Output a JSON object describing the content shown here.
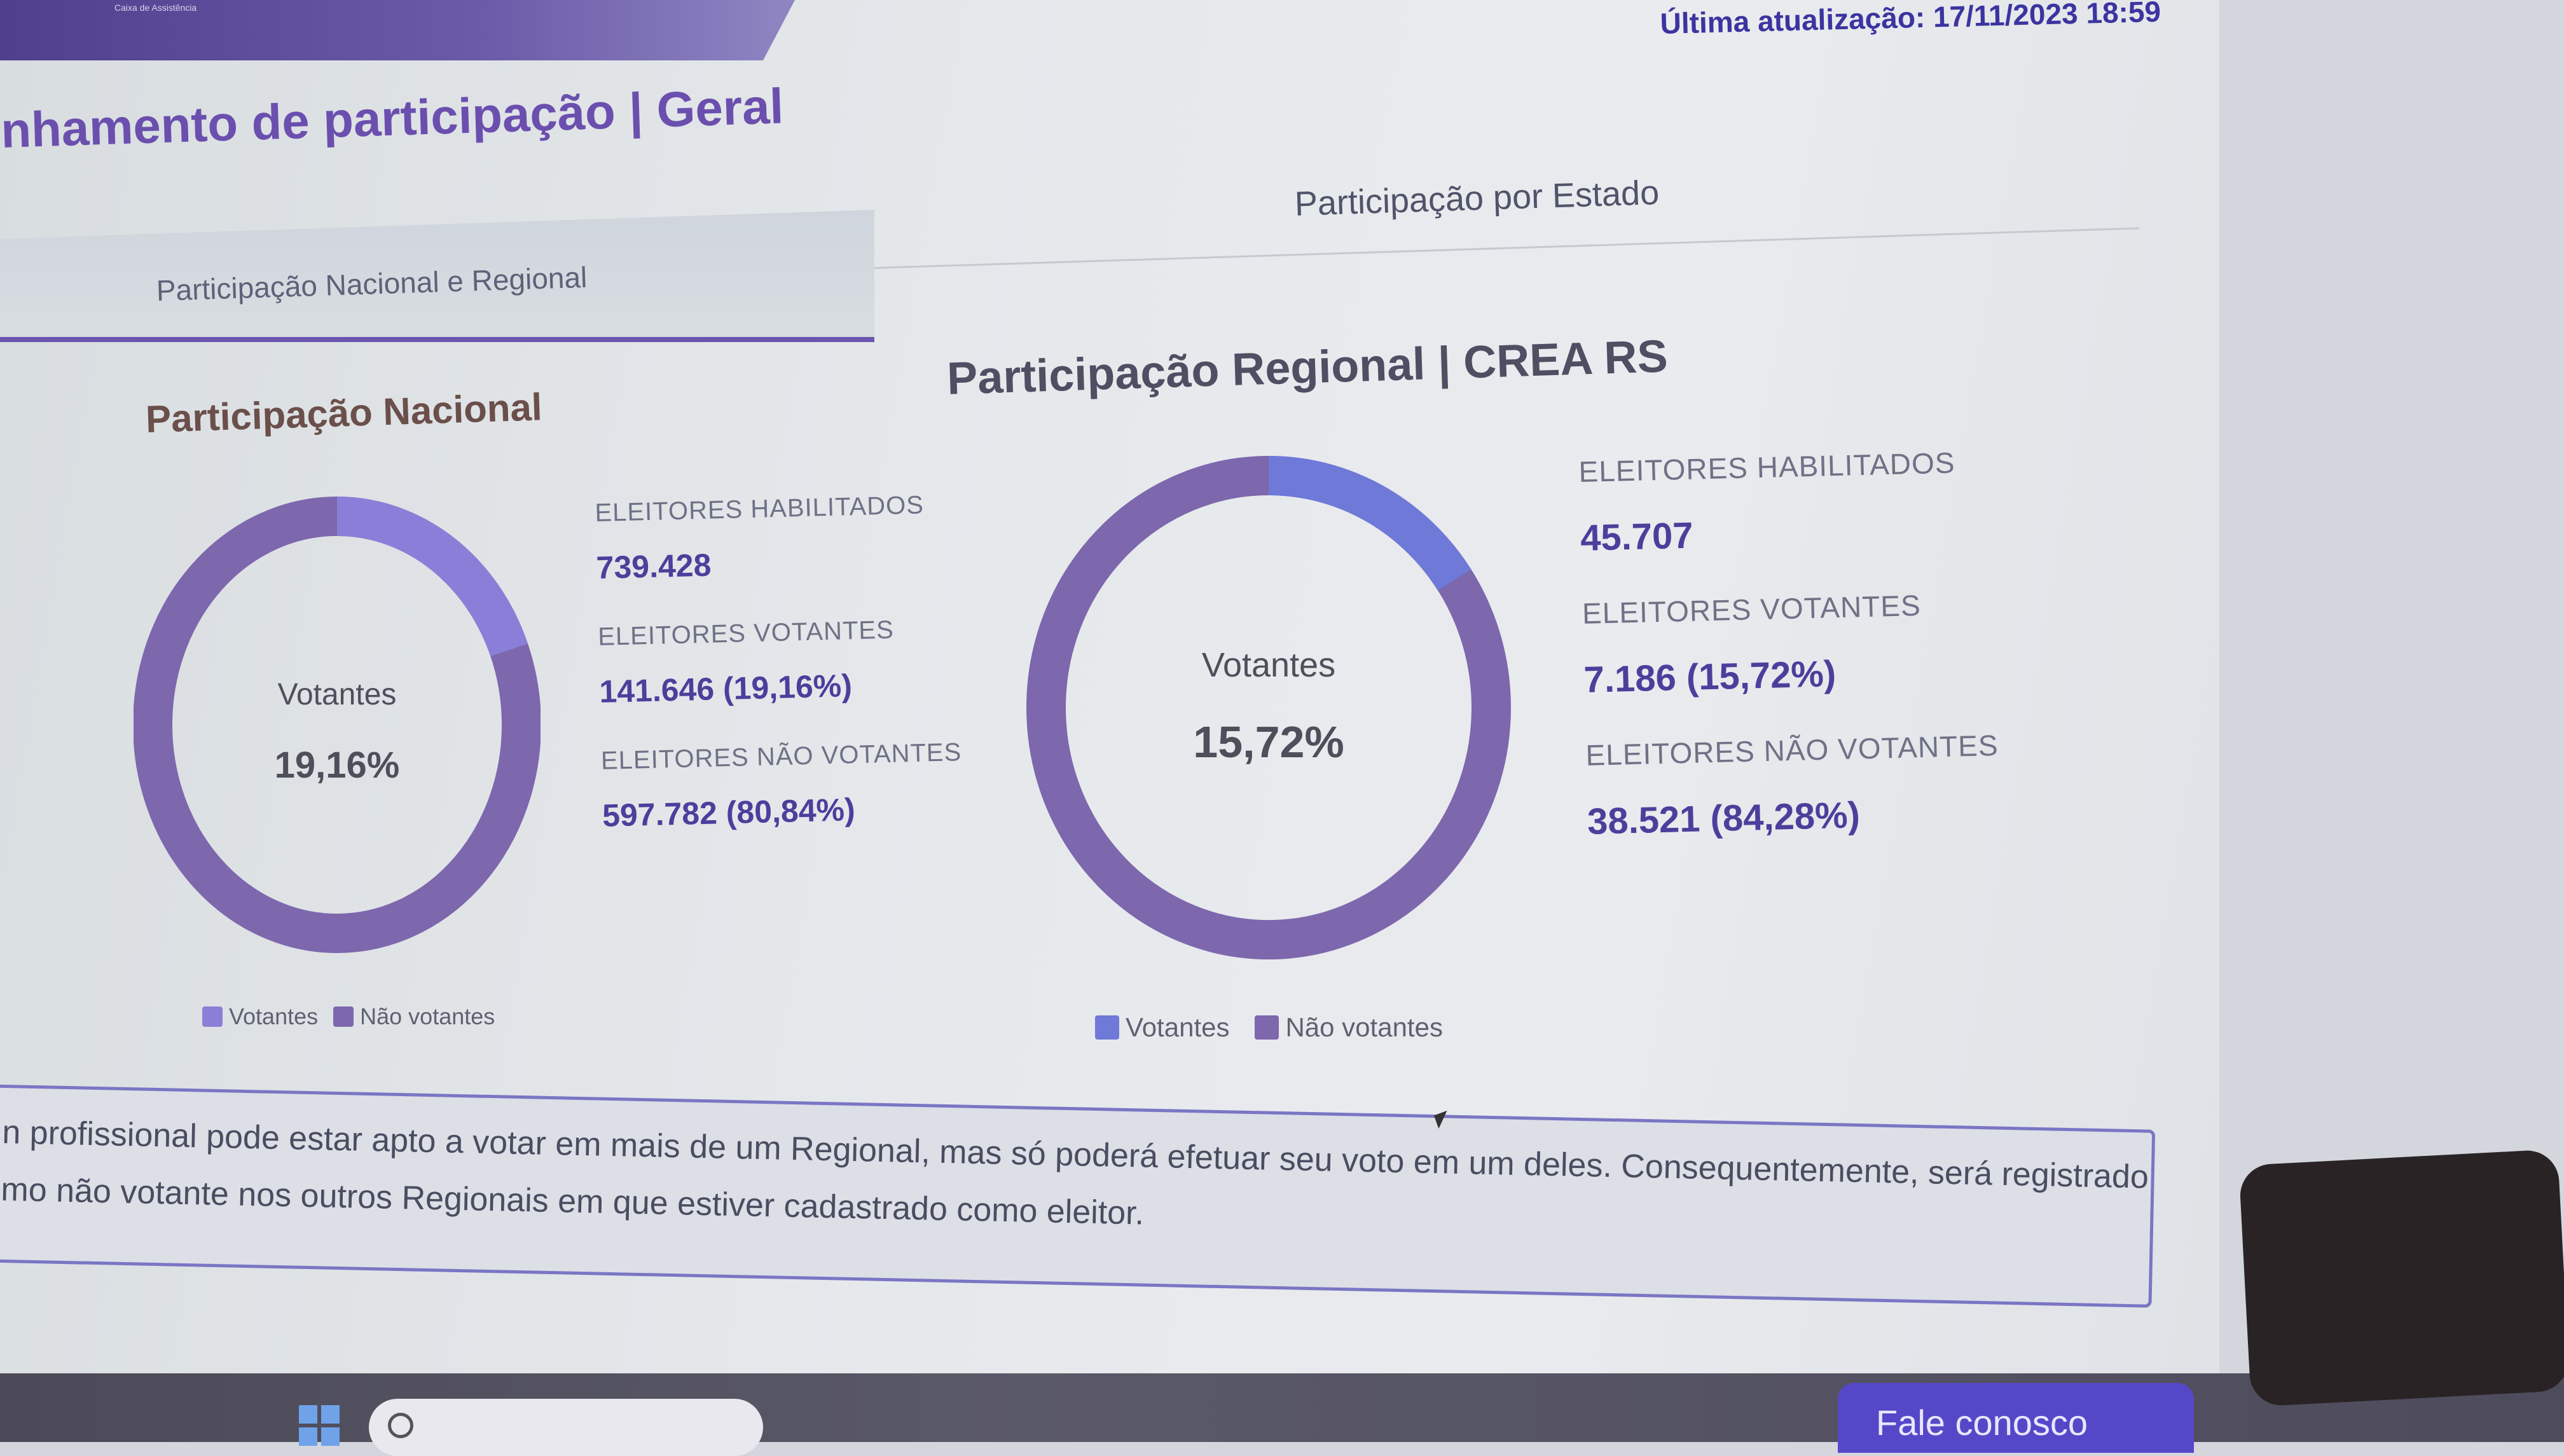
{
  "header": {
    "logo_caption": "Caixa de Assistência",
    "last_update": "Última atualização: 17/11/2023 18:59"
  },
  "page": {
    "title": "nhamento de participação | Geral"
  },
  "tabs": [
    {
      "label": "Participação Nacional e Regional",
      "active": true
    },
    {
      "label": "Participação por Estado",
      "active": false
    }
  ],
  "nacional": {
    "title": "Participação Nacional",
    "center_label": "Votantes",
    "center_value": "19,16%",
    "stats": [
      {
        "label": "ELEITORES HABILITADOS",
        "value": "739.428"
      },
      {
        "label": "ELEITORES VOTANTES",
        "value": "141.646 (19,16%)"
      },
      {
        "label": "ELEITORES NÃO VOTANTES",
        "value": "597.782 (80,84%)"
      }
    ],
    "legend": {
      "votantes": "Votantes",
      "nao_votantes": "Não votantes"
    },
    "fraction_votantes": 0.1916
  },
  "regional": {
    "title": "Participação Regional | CREA RS",
    "center_label": "Votantes",
    "center_value": "15,72%",
    "stats": [
      {
        "label": "ELEITORES HABILITADOS",
        "value": "45.707"
      },
      {
        "label": "ELEITORES VOTANTES",
        "value": "7.186 (15,72%)"
      },
      {
        "label": "ELEITORES NÃO VOTANTES",
        "value": "38.521 (84,28%)"
      }
    ],
    "legend": {
      "votantes": "Votantes",
      "nao_votantes": "Não votantes"
    },
    "fraction_votantes": 0.1572
  },
  "note": {
    "line1": "n profissional pode estar apto a votar em mais de um Regional, mas só poderá efetuar seu voto em um deles. Consequentemente, será registrado",
    "line2": "mo não votante nos outros Regionais em que estiver cadastrado como eleitor."
  },
  "footer": {
    "fale_button": "Fale conosco"
  },
  "colors": {
    "votantes_nacional": "#8a7fd8",
    "votantes_regional": "#6e79d8",
    "nao_votantes": "#7d67ad",
    "accent": "#4b3f9c"
  }
}
